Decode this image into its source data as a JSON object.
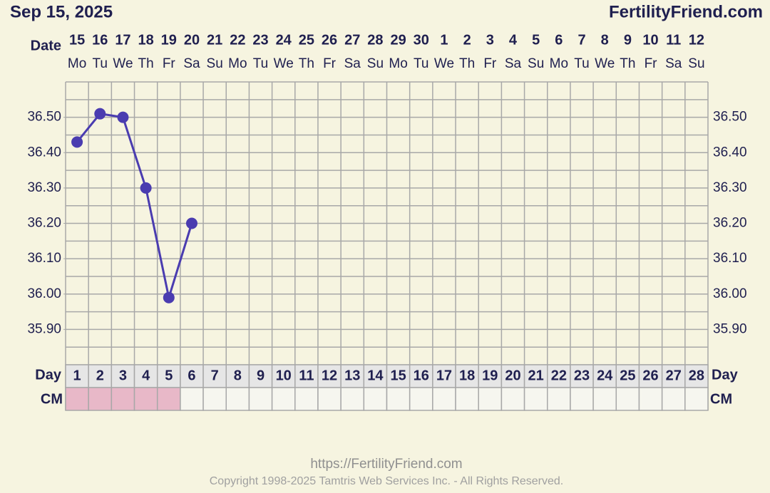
{
  "chart_data": {
    "type": "line",
    "title": "Sep 15, 2025",
    "brand": "FertilityFriend.com",
    "date_label": "Date",
    "day_label": "Day",
    "cm_label": "CM",
    "dates": [
      "15",
      "16",
      "17",
      "18",
      "19",
      "20",
      "21",
      "22",
      "23",
      "24",
      "25",
      "26",
      "27",
      "28",
      "29",
      "30",
      "1",
      "2",
      "3",
      "4",
      "5",
      "6",
      "7",
      "8",
      "9",
      "10",
      "11",
      "12"
    ],
    "weekdays": [
      "Mo",
      "Tu",
      "We",
      "Th",
      "Fr",
      "Sa",
      "Su",
      "Mo",
      "Tu",
      "We",
      "Th",
      "Fr",
      "Sa",
      "Su",
      "Mo",
      "Tu",
      "We",
      "Th",
      "Fr",
      "Sa",
      "Su",
      "Mo",
      "Tu",
      "We",
      "Th",
      "Fr",
      "Sa",
      "Su"
    ],
    "categories": [
      "1",
      "2",
      "3",
      "4",
      "5",
      "6",
      "7",
      "8",
      "9",
      "10",
      "11",
      "12",
      "13",
      "14",
      "15",
      "16",
      "17",
      "18",
      "19",
      "20",
      "21",
      "22",
      "23",
      "24",
      "25",
      "26",
      "27",
      "28"
    ],
    "series": [
      {
        "color": "#4a3cb0",
        "values": [
          36.43,
          36.51,
          36.5,
          36.3,
          35.99,
          36.2,
          null,
          null,
          null,
          null,
          null,
          null,
          null,
          null,
          null,
          null,
          null,
          null,
          null,
          null,
          null,
          null,
          null,
          null,
          null,
          null,
          null,
          null
        ]
      }
    ],
    "cm_colors": [
      "#e8b8c8",
      "#e8b8c8",
      "#e8b8c8",
      "#e8b8c8",
      "#e8b8c8",
      "#f6f6ef",
      "#f6f6ef",
      "#f6f6ef",
      "#f6f6ef",
      "#f6f6ef",
      "#f6f6ef",
      "#f6f6ef",
      "#f6f6ef",
      "#f6f6ef",
      "#f6f6ef",
      "#f6f6ef",
      "#f6f6ef",
      "#f6f6ef",
      "#f6f6ef",
      "#f6f6ef",
      "#f6f6ef",
      "#f6f6ef",
      "#f6f6ef",
      "#f6f6ef",
      "#f6f6ef",
      "#f6f6ef",
      "#f6f6ef",
      "#f6f6ef"
    ],
    "ylim": [
      35.8,
      36.6
    ],
    "yticks": [
      {
        "value": 35.9,
        "label": "35.90"
      },
      {
        "value": 36.0,
        "label": "36.00"
      },
      {
        "value": 36.1,
        "label": "36.10"
      },
      {
        "value": 36.2,
        "label": "36.20"
      },
      {
        "value": 36.3,
        "label": "36.30"
      },
      {
        "value": 36.4,
        "label": "36.40"
      },
      {
        "value": 36.5,
        "label": "36.50"
      }
    ],
    "grid_lines": [
      35.8,
      35.85,
      35.9,
      35.95,
      36.0,
      36.05,
      36.1,
      36.15,
      36.2,
      36.25,
      36.3,
      36.35,
      36.4,
      36.45,
      36.5,
      36.55,
      36.6
    ],
    "grid": true,
    "footer_url": "https://FertilityFriend.com",
    "copyright": "Copyright 1998-2025 Tamtris Web Services Inc. - All Rights Reserved."
  }
}
